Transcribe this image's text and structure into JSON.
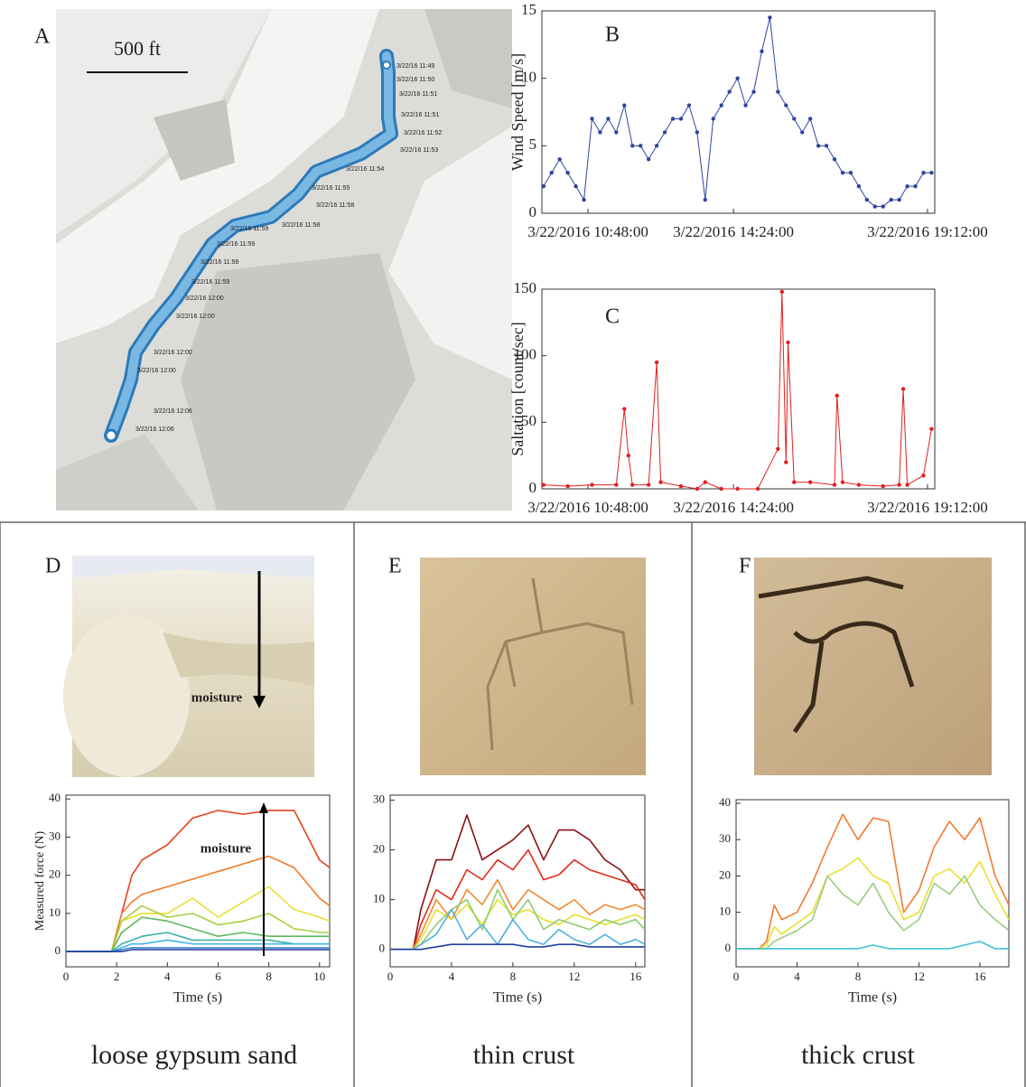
{
  "panel_a": {
    "label": "A",
    "scale": "500 ft",
    "timestamps": [
      "3/22/16 11:49",
      "3/22/16 11:50",
      "3/22/16 11:51",
      "3/22/16 11:51",
      "3/22/16 11:52",
      "3/22/16 11:53",
      "3/22/16 11:54",
      "3/22/16 11:55",
      "3/22/16 11:58",
      "3/22/16 11:58",
      "3/22/16 11:59",
      "3/22/16 11:59",
      "3/22/16 11:59",
      "3/22/16 11:59",
      "3/22/16 12:00",
      "3/22/16 12:00",
      "3/22/16 12:00",
      "3/22/16 12:00",
      "3/22/16 12:06",
      "3/22/16 12:06"
    ]
  },
  "panels": [
    {
      "label": "D",
      "photo_text": "moisture",
      "caption": "loose gypsum sand"
    },
    {
      "label": "E",
      "caption": "thin crust"
    },
    {
      "label": "F",
      "caption": "thick crust"
    }
  ],
  "chart_data": [
    {
      "type": "line",
      "label": "B",
      "ylabel": "Wind Speed [m/s]",
      "markers": true,
      "color": "#2e45a0",
      "xlim": [
        9.66,
        19.38
      ],
      "ylim": [
        0,
        15
      ],
      "xticks": [
        {
          "value": 10.8,
          "label": "3/22/2016 10:48:00"
        },
        {
          "value": 14.4,
          "label": "3/22/2016 14:24:00"
        },
        {
          "value": 19.2,
          "label": "3/22/2016 19:12:00"
        }
      ],
      "yticks": [
        0,
        5,
        10,
        15
      ],
      "x": [
        9.7,
        9.9,
        10.1,
        10.3,
        10.5,
        10.7,
        10.9,
        11.1,
        11.3,
        11.5,
        11.7,
        11.9,
        12.1,
        12.3,
        12.5,
        12.7,
        12.9,
        13.1,
        13.3,
        13.5,
        13.7,
        13.9,
        14.1,
        14.3,
        14.5,
        14.7,
        14.9,
        15.1,
        15.3,
        15.5,
        15.7,
        15.9,
        16.1,
        16.3,
        16.5,
        16.7,
        16.9,
        17.1,
        17.3,
        17.5,
        17.7,
        17.9,
        18.1,
        18.3,
        18.5,
        18.7,
        18.9,
        19.1,
        19.3
      ],
      "values": [
        2,
        3,
        4,
        3,
        2,
        1,
        7,
        6,
        7,
        6,
        8,
        5,
        5,
        4,
        5,
        6,
        7,
        7,
        8,
        6,
        1,
        7,
        8,
        9,
        10,
        8,
        9,
        12,
        14.5,
        9,
        8,
        7,
        6,
        7,
        5,
        5,
        4,
        3,
        3,
        2,
        1,
        0.5,
        0.5,
        1,
        1,
        2,
        2,
        3,
        3
      ]
    },
    {
      "type": "line",
      "label": "C",
      "ylabel": "Saltation [count/sec]",
      "markers": true,
      "color": "#e02020",
      "xlim": [
        9.66,
        19.38
      ],
      "ylim": [
        0,
        150
      ],
      "xticks": [
        {
          "value": 10.8,
          "label": "3/22/2016 10:48:00"
        },
        {
          "value": 14.4,
          "label": "3/22/2016 14:24:00"
        },
        {
          "value": 19.2,
          "label": "3/22/2016 19:12:00"
        }
      ],
      "yticks": [
        0,
        50,
        100,
        150
      ],
      "x": [
        9.7,
        10.3,
        10.9,
        11.5,
        11.7,
        11.8,
        11.9,
        12.3,
        12.5,
        12.6,
        13.1,
        13.5,
        13.7,
        14.1,
        14.5,
        15.0,
        15.5,
        15.6,
        15.7,
        15.75,
        15.9,
        16.3,
        16.9,
        16.96,
        17.1,
        17.5,
        18.1,
        18.5,
        18.6,
        18.7,
        19.1,
        19.3
      ],
      "values": [
        3,
        2,
        3,
        3,
        60,
        25,
        3,
        3,
        95,
        5,
        2,
        0,
        5,
        0,
        0,
        0,
        30,
        148,
        20,
        110,
        5,
        5,
        3,
        70,
        5,
        3,
        2,
        3,
        75,
        3,
        10,
        45
      ]
    },
    {
      "type": "line",
      "ylabel": "Measured force (N)",
      "xlabel": "Time (s)",
      "annotation": "moisture",
      "xlim": [
        0,
        10.4
      ],
      "ylim": [
        -4,
        41
      ],
      "xticks": [
        0,
        2,
        4,
        6,
        8,
        10
      ],
      "yticks": [
        0,
        10,
        20,
        30,
        40
      ],
      "x": [
        0,
        1,
        1.8,
        2.2,
        2.6,
        3,
        4,
        5,
        6,
        7,
        8,
        9,
        10,
        10.4
      ],
      "series": [
        {
          "color": "#e8401c",
          "values": [
            0,
            0,
            0,
            10,
            20,
            24,
            28,
            35,
            37,
            36,
            37,
            37,
            24,
            22
          ]
        },
        {
          "color": "#f07a28",
          "values": [
            0,
            0,
            0,
            10,
            13,
            15,
            17,
            19,
            21,
            23,
            25,
            22,
            14,
            12
          ]
        },
        {
          "color": "#e8e030",
          "values": [
            0,
            0,
            0,
            8,
            9,
            10,
            10,
            14,
            9,
            13,
            17,
            11,
            9,
            8
          ]
        },
        {
          "color": "#a8d040",
          "values": [
            0,
            0,
            0,
            8,
            10,
            12,
            9,
            10,
            7,
            8,
            10,
            6,
            5,
            5
          ]
        },
        {
          "color": "#5cb860",
          "values": [
            0,
            0,
            0,
            5,
            7,
            9,
            8,
            6,
            4,
            5,
            4,
            4,
            4,
            4
          ]
        },
        {
          "color": "#3cb0a8",
          "values": [
            0,
            0,
            0,
            2,
            3,
            4,
            5,
            3,
            3,
            3,
            3,
            2,
            2,
            2
          ]
        },
        {
          "color": "#40b8e8",
          "values": [
            0,
            0,
            0,
            1,
            2,
            2,
            3,
            2,
            2,
            2,
            2,
            2,
            2,
            2
          ]
        },
        {
          "color": "#4080d0",
          "values": [
            0,
            0,
            0,
            0.5,
            1,
            1,
            1,
            1,
            1,
            1,
            1,
            1,
            1,
            1
          ]
        },
        {
          "color": "#203c98",
          "values": [
            0,
            0,
            0,
            0,
            0.5,
            0.5,
            0.5,
            0.5,
            0.5,
            0.5,
            0.5,
            0.5,
            0.5,
            0.5
          ]
        }
      ]
    },
    {
      "type": "line",
      "xlabel": "Time (s)",
      "xlim": [
        0,
        16.6
      ],
      "ylim": [
        -3.5,
        31
      ],
      "xticks": [
        0,
        4,
        8,
        12,
        16
      ],
      "yticks": [
        0,
        10,
        20,
        30
      ],
      "x": [
        0,
        1.5,
        2,
        3,
        4,
        5,
        6,
        7,
        8,
        9,
        10,
        11,
        12,
        13,
        14,
        15,
        16,
        16.6
      ],
      "series": [
        {
          "color": "#8a1010",
          "values": [
            0,
            0,
            8,
            18,
            18,
            27,
            18,
            20,
            22,
            25,
            18,
            24,
            24,
            22,
            18,
            16,
            12,
            12
          ]
        },
        {
          "color": "#e02a1a",
          "values": [
            0,
            0,
            5,
            12,
            10,
            16,
            14,
            18,
            16,
            20,
            14,
            15,
            18,
            16,
            15,
            14,
            13,
            10
          ]
        },
        {
          "color": "#f08a30",
          "values": [
            0,
            0,
            3,
            10,
            6,
            12,
            9,
            14,
            8,
            12,
            10,
            8,
            10,
            7,
            9,
            8,
            9,
            8
          ]
        },
        {
          "color": "#e8e030",
          "values": [
            0,
            0,
            2,
            8,
            6,
            9,
            5,
            10,
            7,
            8,
            6,
            5,
            7,
            6,
            5,
            6,
            7,
            6
          ]
        },
        {
          "color": "#90cc70",
          "values": [
            0,
            0,
            1,
            5,
            8,
            10,
            4,
            12,
            6,
            10,
            4,
            6,
            5,
            4,
            6,
            5,
            6,
            4
          ]
        },
        {
          "color": "#50b0e0",
          "values": [
            0,
            0,
            1,
            3,
            8,
            2,
            5,
            1,
            6,
            2,
            1,
            4,
            2,
            1,
            3,
            1,
            2,
            1
          ]
        },
        {
          "color": "#2040a0",
          "values": [
            0,
            0,
            0,
            0.5,
            1,
            1,
            1,
            1,
            1,
            0.5,
            0.5,
            1,
            1,
            0.5,
            0.5,
            0.5,
            0.5,
            0.5
          ]
        }
      ]
    },
    {
      "type": "line",
      "xlabel": "Time (s)",
      "xlim": [
        0,
        17.9
      ],
      "ylim": [
        -5,
        41
      ],
      "xticks": [
        0,
        4,
        8,
        12,
        16
      ],
      "yticks": [
        0,
        10,
        20,
        30,
        40
      ],
      "x": [
        0,
        1.5,
        2,
        2.5,
        3,
        4,
        5,
        6,
        7,
        8,
        9,
        10,
        11,
        12,
        13,
        14,
        15,
        16,
        17,
        17.9
      ],
      "series": [
        {
          "color": "#f07a30",
          "values": [
            0,
            0,
            2,
            12,
            8,
            10,
            18,
            28,
            37,
            30,
            36,
            35,
            10,
            16,
            28,
            35,
            30,
            36,
            20,
            12
          ]
        },
        {
          "color": "#e8e030",
          "values": [
            0,
            0,
            1,
            6,
            4,
            7,
            10,
            20,
            22,
            25,
            20,
            18,
            8,
            10,
            20,
            22,
            18,
            24,
            15,
            8
          ]
        },
        {
          "color": "#9ccc80",
          "values": [
            0,
            0,
            0,
            2,
            3,
            5,
            8,
            20,
            15,
            12,
            18,
            10,
            5,
            8,
            18,
            15,
            20,
            12,
            8,
            5
          ]
        },
        {
          "color": "#40c0d8",
          "values": [
            0,
            0,
            0,
            0,
            0,
            0,
            0,
            0,
            0,
            0,
            1,
            0,
            0,
            0,
            0,
            0,
            1,
            2,
            0,
            0
          ]
        }
      ]
    }
  ]
}
